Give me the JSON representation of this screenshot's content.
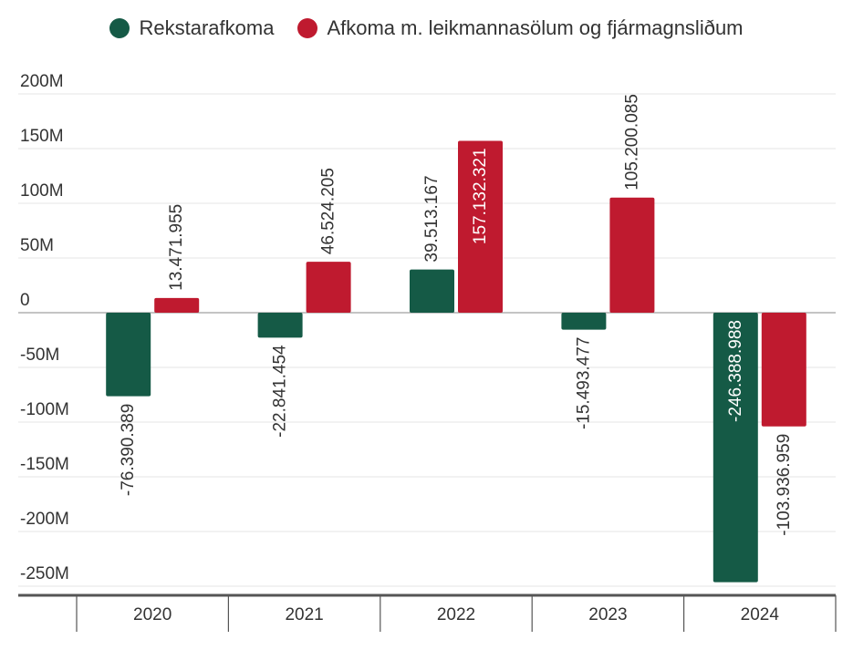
{
  "chart_data": {
    "type": "bar",
    "categories": [
      "2020",
      "2021",
      "2022",
      "2023",
      "2024"
    ],
    "series": [
      {
        "name": "Rekstarafkoma",
        "color": "#155a46",
        "values": [
          -76390389,
          -22841454,
          39513167,
          -15493477,
          -246388988
        ],
        "labels": [
          "-76.390.389",
          "-22.841.454",
          "39.513.167",
          "-15.493.477",
          "-246.388.988"
        ]
      },
      {
        "name": "Afkoma m. leikmannasölum og fjármagnsliðum",
        "color": "#bf1a2f",
        "values": [
          13471955,
          46524205,
          157132321,
          105200085,
          -103936959
        ],
        "labels": [
          "13.471.955",
          "46.524.205",
          "157.132.321",
          "105.200.085",
          "-103.936.959"
        ]
      }
    ],
    "yticks": [
      "200M",
      "150M",
      "100M",
      "50M",
      "0",
      "-50M",
      "-100M",
      "-150M",
      "-200M",
      "-250M"
    ],
    "ylim": [
      -250000000,
      200000000
    ],
    "grid": true,
    "legend_position": "top-center"
  }
}
